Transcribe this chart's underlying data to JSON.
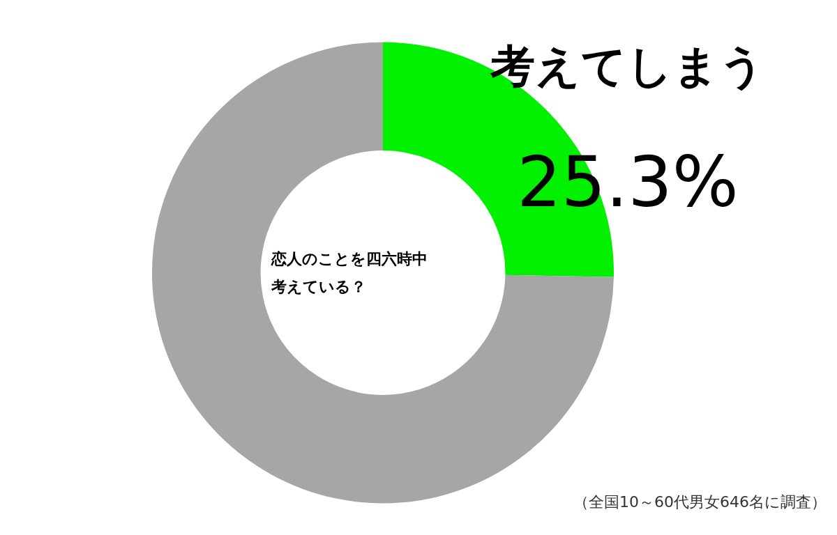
{
  "chart_data": {
    "type": "donut",
    "title": "恋人のことを四六時中考えている？",
    "categories": [
      "考えてしまう",
      null
    ],
    "values": [
      25.3,
      74.7
    ],
    "colors": [
      "#00f000",
      "#a6a6a6"
    ],
    "value_labels": [
      "25.3%",
      null
    ],
    "legend": false,
    "annotations": [
      "（全国10～60代男女646名に調査）"
    ]
  }
}
